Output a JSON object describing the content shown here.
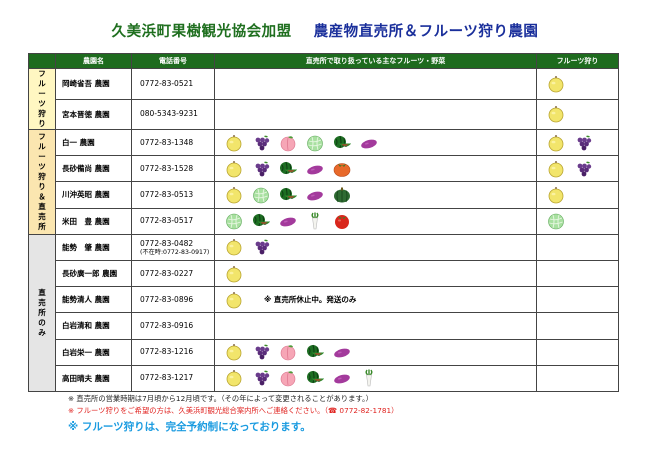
{
  "title": {
    "main": "久美浜町果樹観光協会加盟",
    "sub": "農産物直売所＆フルーツ狩り農園"
  },
  "headers": {
    "farm": "農園名",
    "phone": "電話番号",
    "produce": "直売所で取り扱っている主なフルーツ・野菜",
    "picking": "フルーツ狩り"
  },
  "categories": {
    "c1": "フルーツ狩り",
    "c2": "フルーツ狩り＆直売所",
    "c3": "直売所のみ"
  },
  "rows": [
    {
      "farm": "岡崎省吾 農園",
      "phone": "0772-83-0521",
      "phone_sub": "",
      "produce": [],
      "picking": [
        "pear"
      ]
    },
    {
      "farm": "宮本晋徳 農園",
      "phone": "080-5343-9231",
      "phone_sub": "",
      "produce": [],
      "picking": [
        "pear"
      ]
    },
    {
      "farm": "白一 農園",
      "phone": "0772-83-1348",
      "phone_sub": "",
      "produce": [
        "pear",
        "grape",
        "peach",
        "melon",
        "watermelon",
        "sweetpotato"
      ],
      "picking": [
        "pear",
        "grape"
      ]
    },
    {
      "farm": "長砂備尚 農園",
      "phone": "0772-83-1528",
      "phone_sub": "",
      "produce": [
        "pear",
        "grape",
        "watermelon",
        "sweetpotato",
        "persimmon"
      ],
      "picking": [
        "pear",
        "grape"
      ]
    },
    {
      "farm": "川沖英昭 農園",
      "phone": "0772-83-0513",
      "phone_sub": "",
      "produce": [
        "pear",
        "melon",
        "watermelon",
        "sweetpotato",
        "pumpkin"
      ],
      "picking": [
        "pear"
      ]
    },
    {
      "farm": "米田　豊 農園",
      "phone": "0772-83-0517",
      "phone_sub": "",
      "produce": [
        "melon",
        "watermelon",
        "sweetpotato",
        "radish",
        "tomato"
      ],
      "picking": [
        "melon"
      ]
    },
    {
      "farm": "能勢　肇 農園",
      "phone": "0772-83-0482",
      "phone_sub": "(不在時:0772-83-0917)",
      "produce": [
        "pear",
        "grape"
      ],
      "picking": []
    },
    {
      "farm": "長砂廣一郎 農園",
      "phone": "0772-83-0227",
      "phone_sub": "",
      "produce": [
        "pear"
      ],
      "picking": []
    },
    {
      "farm": "能勢清人 農園",
      "phone": "0772-83-0896",
      "phone_sub": "",
      "produce": [
        "pear"
      ],
      "note": "※ 直売所休止中。発送のみ",
      "picking": []
    },
    {
      "farm": "白岩清和 農園",
      "phone": "0772-83-0916",
      "phone_sub": "",
      "produce": [],
      "picking": []
    },
    {
      "farm": "白岩栄一 農園",
      "phone": "0772-83-1216",
      "phone_sub": "",
      "produce": [
        "pear",
        "grape",
        "peach",
        "watermelon",
        "sweetpotato"
      ],
      "picking": []
    },
    {
      "farm": "高田晴夫 農園",
      "phone": "0772-83-1217",
      "phone_sub": "",
      "produce": [
        "pear",
        "grape",
        "peach",
        "watermelon",
        "sweetpotato",
        "radish"
      ],
      "picking": []
    }
  ],
  "footer": {
    "line1": "※ 直売所の営業時期は7月頃から12月頃です。（その年によって変更されることがあります。）",
    "line2": "※ フルーツ狩りをご希望の方は、久美浜町観光総合案内所へご連絡ください。（☎ 0772-82-1781）",
    "line3": "※ フルーツ狩りは、完全予約制になっております。"
  },
  "colors": {
    "header": "#1e6b1e",
    "title_green": "#1f6f1f",
    "title_blue": "#1a2f9b",
    "note_red": "#e0221f",
    "note_blue": "#1a9be0"
  }
}
